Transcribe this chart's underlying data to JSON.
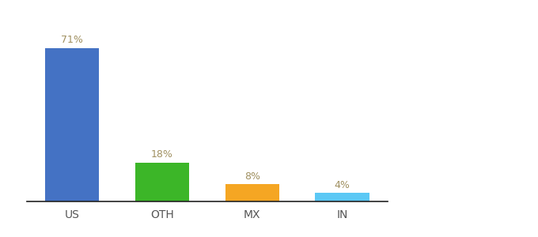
{
  "categories": [
    "US",
    "OTH",
    "MX",
    "IN"
  ],
  "values": [
    71,
    18,
    8,
    4
  ],
  "bar_colors": [
    "#4472c4",
    "#3cb628",
    "#f5a623",
    "#5bc8f5"
  ],
  "label_color": "#a09060",
  "background_color": "#ffffff",
  "ylim": [
    0,
    80
  ],
  "bar_width": 0.6,
  "label_fontsize": 9,
  "tick_fontsize": 10
}
